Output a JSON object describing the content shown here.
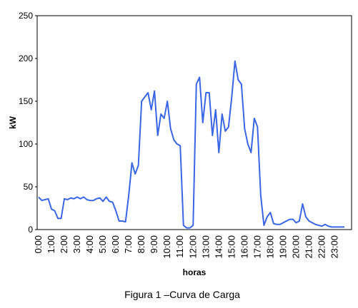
{
  "chart_data": {
    "type": "line",
    "ylabel": "kW",
    "xlabel": "horas",
    "caption": "Figura 1 –Curva de Carga",
    "categories": [
      "0:00",
      null,
      null,
      null,
      "1:00",
      null,
      null,
      null,
      "2:00",
      null,
      null,
      null,
      "3:00",
      null,
      null,
      null,
      "4:00",
      null,
      null,
      null,
      "5:00",
      null,
      null,
      null,
      "6:00",
      null,
      null,
      null,
      "7:00",
      null,
      null,
      null,
      "8:00",
      null,
      null,
      null,
      "9:00",
      null,
      null,
      null,
      "10:00",
      null,
      null,
      null,
      "11:00",
      null,
      null,
      null,
      "12:00",
      null,
      null,
      null,
      "13:00",
      null,
      null,
      null,
      "14:00",
      null,
      null,
      null,
      "15:00",
      null,
      null,
      null,
      "16:00",
      null,
      null,
      null,
      "17:00",
      null,
      null,
      null,
      "18:00",
      null,
      null,
      null,
      "19:00",
      null,
      null,
      null,
      "20:00",
      null,
      null,
      null,
      "21:00",
      null,
      null,
      null,
      "22:00",
      null,
      null,
      null,
      "23:00",
      null,
      null,
      null
    ],
    "values": [
      38,
      34,
      35,
      36,
      24,
      22,
      13,
      13,
      36,
      35,
      37,
      36,
      38,
      36,
      38,
      35,
      34,
      34,
      36,
      37,
      33,
      38,
      33,
      32,
      22,
      10,
      10,
      9,
      40,
      78,
      65,
      75,
      150,
      155,
      160,
      140,
      162,
      110,
      135,
      130,
      150,
      118,
      105,
      100,
      98,
      5,
      2,
      2,
      5,
      170,
      178,
      125,
      160,
      160,
      110,
      140,
      90,
      135,
      115,
      120,
      155,
      197,
      175,
      170,
      118,
      100,
      90,
      130,
      120,
      40,
      5,
      15,
      20,
      7,
      6,
      6,
      8,
      10,
      12,
      12,
      8,
      10,
      30,
      15,
      10,
      8,
      6,
      5,
      4,
      6,
      4,
      3,
      3,
      3,
      3,
      3
    ],
    "color": "#3a66e6",
    "ylim": [
      0,
      250
    ],
    "yticks": [
      0,
      50,
      100,
      150,
      200,
      250
    ],
    "grid": false
  }
}
